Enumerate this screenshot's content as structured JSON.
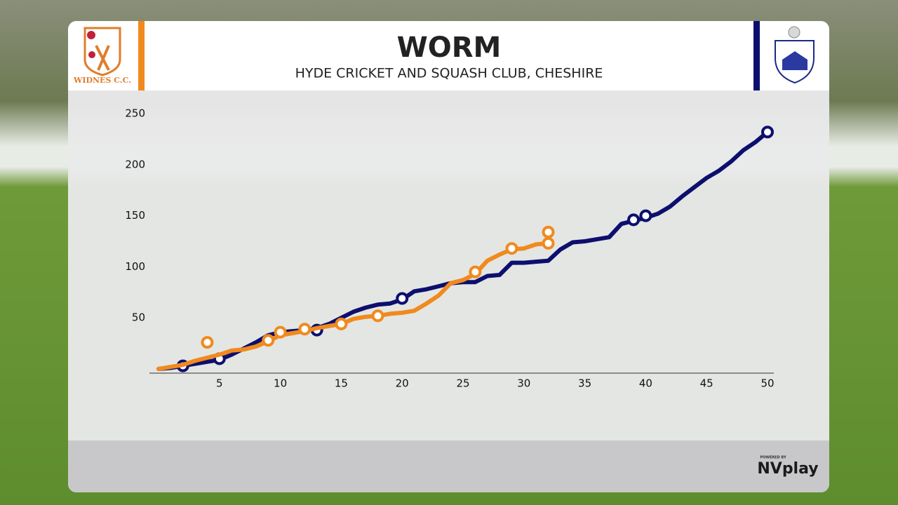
{
  "header": {
    "title": "WORM",
    "subtitle": "HYDE CRICKET AND SQUASH CLUB, CHESHIRE",
    "home_logo_text": "WIDNES C.C."
  },
  "footer": {
    "powered_by": "POWERED BY",
    "brand": "NVplay"
  },
  "chart_data": {
    "type": "line",
    "xlim": [
      0,
      50
    ],
    "ylim": [
      0,
      250
    ],
    "xticks": [
      5,
      10,
      15,
      20,
      25,
      30,
      35,
      40,
      45,
      50
    ],
    "yticks": [
      50,
      100,
      150,
      200,
      250
    ],
    "series": [
      {
        "color": "#0d0f6e",
        "x": [
          0,
          1,
          2,
          3,
          4,
          5,
          6,
          7,
          8,
          9,
          10,
          11,
          12,
          13,
          14,
          15,
          16,
          17,
          18,
          19,
          20,
          21,
          22,
          23,
          24,
          25,
          26,
          27,
          28,
          29,
          30,
          31,
          32,
          33,
          34,
          35,
          36,
          37,
          38,
          39,
          40,
          41,
          42,
          43,
          44,
          45,
          46,
          47,
          48,
          49,
          50
        ],
        "values": [
          0,
          1,
          3,
          5,
          7,
          9,
          14,
          20,
          26,
          33,
          36,
          37,
          38,
          40,
          44,
          50,
          56,
          60,
          63,
          64,
          68,
          76,
          78,
          81,
          84,
          85,
          85,
          91,
          92,
          104,
          104,
          105,
          106,
          117,
          124,
          125,
          127,
          129,
          142,
          145,
          148,
          152,
          159,
          169,
          178,
          187,
          194,
          203,
          214,
          222,
          232
        ],
        "wickets": {
          "x": [
            2,
            5,
            13,
            20,
            39,
            40,
            50
          ],
          "values": [
            3,
            10,
            38,
            69,
            146,
            150,
            232
          ]
        }
      },
      {
        "color": "#f08a1e",
        "x": [
          0,
          1,
          2,
          3,
          4,
          5,
          6,
          7,
          8,
          9,
          10,
          11,
          12,
          13,
          14,
          15,
          16,
          17,
          18,
          19,
          20,
          21,
          22,
          23,
          24,
          25,
          26,
          27,
          28,
          29,
          30,
          31,
          32
        ],
        "values": [
          0,
          2,
          4,
          8,
          11,
          14,
          18,
          19,
          22,
          27,
          33,
          35,
          37,
          40,
          42,
          44,
          49,
          51,
          52,
          54,
          55,
          57,
          64,
          72,
          84,
          87,
          93,
          106,
          112,
          117,
          118,
          122,
          123
        ],
        "wickets": {
          "x": [
            4,
            9,
            10,
            12,
            15,
            18,
            26,
            29,
            32,
            32
          ],
          "values": [
            26,
            28,
            36,
            39,
            44,
            52,
            95,
            118,
            123,
            134
          ]
        }
      }
    ]
  }
}
